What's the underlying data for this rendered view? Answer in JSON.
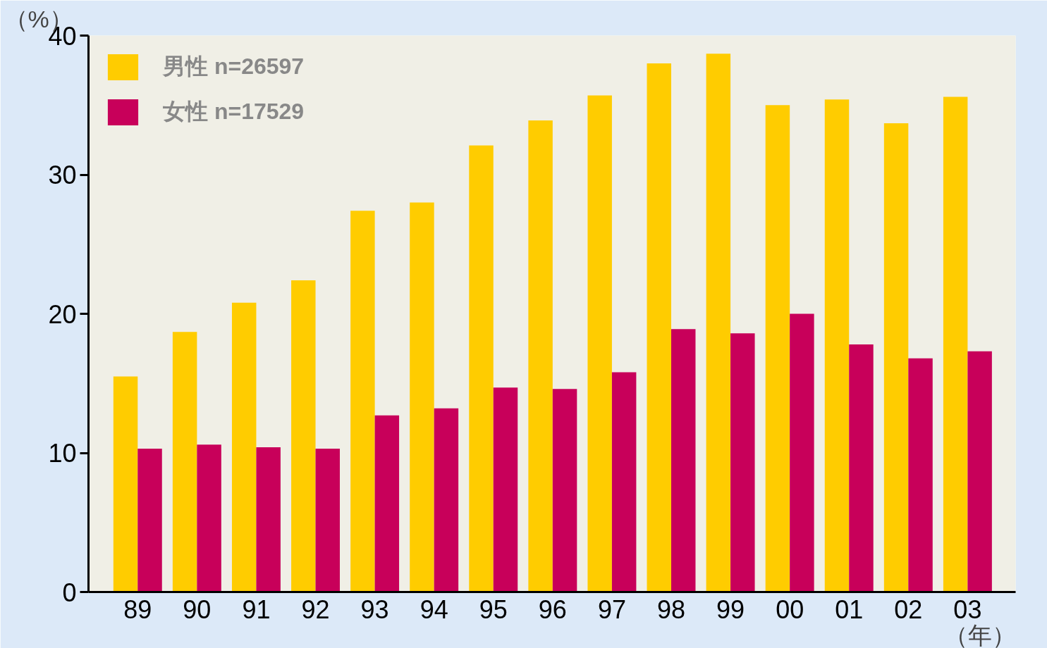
{
  "chart_data": {
    "type": "bar",
    "ylabel": "（%）",
    "xlabel": "（年）",
    "categories": [
      "89",
      "90",
      "91",
      "92",
      "93",
      "94",
      "95",
      "96",
      "97",
      "98",
      "99",
      "00",
      "01",
      "02",
      "03"
    ],
    "series": [
      {
        "name": "男性 n=26597",
        "color": "#ffcc00",
        "values": [
          15.5,
          18.7,
          20.8,
          22.4,
          27.4,
          28.0,
          32.1,
          33.9,
          35.7,
          38.0,
          38.7,
          35.0,
          35.4,
          33.7,
          35.6
        ]
      },
      {
        "name": "女性 n=17529",
        "color": "#c8005a",
        "values": [
          10.3,
          10.6,
          10.4,
          10.3,
          12.7,
          13.2,
          14.7,
          14.6,
          15.8,
          18.9,
          18.6,
          20.0,
          17.8,
          16.8,
          17.3
        ]
      }
    ],
    "ylim": [
      0,
      40
    ],
    "yticks": [
      0,
      10,
      20,
      30,
      40
    ],
    "grid": false,
    "legend": "top left"
  }
}
